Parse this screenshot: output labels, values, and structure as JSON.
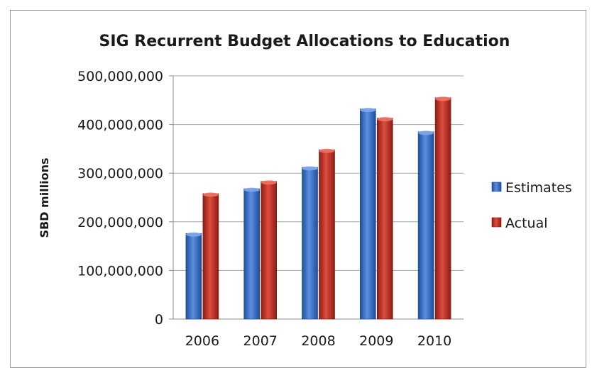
{
  "chart_data": {
    "type": "bar",
    "title": "SIG Recurrent Budget Allocations to Education",
    "xlabel": "",
    "ylabel": "SBD millions",
    "categories": [
      "2006",
      "2007",
      "2008",
      "2009",
      "2010"
    ],
    "series": [
      {
        "name": "Estimates",
        "values": [
          176000000,
          268000000,
          312000000,
          432000000,
          385000000
        ],
        "color": "#3a6fc4"
      },
      {
        "name": "Actual",
        "values": [
          258000000,
          283000000,
          348000000,
          413000000,
          455000000
        ],
        "color": "#c0392b"
      }
    ],
    "ylim": [
      0,
      500000000
    ],
    "yticks": [
      0,
      100000000,
      200000000,
      300000000,
      400000000,
      500000000
    ],
    "ytick_labels": [
      "0",
      "100,000,000",
      "200,000,000",
      "300,000,000",
      "400,000,000",
      "500,000,000"
    ],
    "grid": true,
    "legend_position": "right"
  }
}
